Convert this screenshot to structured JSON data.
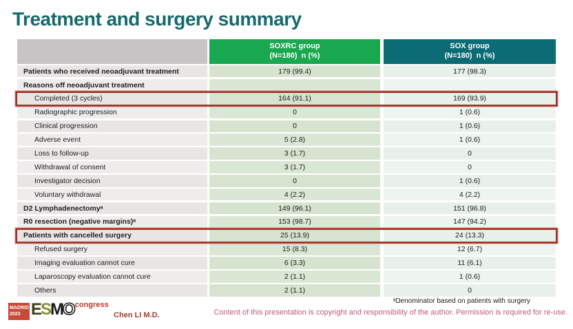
{
  "slide": {
    "title": "Treatment and surgery summary"
  },
  "colors": {
    "title_teal": "#17696d",
    "header_gray": "#c6c4c4",
    "header_soxrc_green": "#19a74f",
    "header_sox_teal": "#0b6c75",
    "highlight_box_red": "#9e2f27",
    "label_col_bg": "#e9e5e5",
    "soxrc_col_bg": "#d5e3cf",
    "sox_col_bg": "#e7f0e9",
    "copyright_rose": "#c25a72",
    "presenter_red": "#a33c33"
  },
  "table": {
    "columns": [
      {
        "line1": "",
        "line2": ""
      },
      {
        "line1": "SOXRC group",
        "line2": "(N=180)  n (%)"
      },
      {
        "line1": "SOX group",
        "line2": "(N=180)  n (%)"
      }
    ],
    "rows": [
      {
        "label": "Patients who received neoadjuvant treatment",
        "soxrc": "179 (99.4)",
        "sox": "177 (98.3)",
        "bold": true
      },
      {
        "label": "Reasons off neoadjuvant treatment",
        "soxrc": "",
        "sox": "",
        "bold": true
      },
      {
        "label": "Completed (3 cycles)",
        "soxrc": "164 (91.1)",
        "sox": "169 (93.9)",
        "indent": true,
        "highlight": true
      },
      {
        "label": "Radiographic progression",
        "soxrc": "0",
        "sox": "1 (0.6)",
        "indent": true
      },
      {
        "label": "Clinical progression",
        "soxrc": "0",
        "sox": "1 (0.6)",
        "indent": true
      },
      {
        "label": "Adverse event",
        "soxrc": "5 (2.8)",
        "sox": "1 (0.6)",
        "indent": true
      },
      {
        "label": "Loss to follow-up",
        "soxrc": "3 (1.7)",
        "sox": "0",
        "indent": true
      },
      {
        "label": "Withdrawal of consent",
        "soxrc": "3 (1.7)",
        "sox": "0",
        "indent": true
      },
      {
        "label": "Investigator decision",
        "soxrc": "0",
        "sox": "1 (0.6)",
        "indent": true
      },
      {
        "label": "Voluntary withdrawal",
        "soxrc": "4 (2.2)",
        "sox": "4 (2.2)",
        "indent": true
      },
      {
        "label": "D2 Lymphadenectomyᵃ",
        "soxrc": "149 (96.1)",
        "sox": "151 (96.8)",
        "bold": true
      },
      {
        "label": "R0 resection (negative margins)ᵃ",
        "soxrc": "153 (98.7)",
        "sox": "147 (94.2)",
        "bold": true
      },
      {
        "label": "Patients with cancelled surgery",
        "soxrc": "25 (13.9)",
        "sox": "24 (13.3)",
        "bold": true,
        "highlight": true
      },
      {
        "label": "Refused surgery",
        "soxrc": "15 (8.3)",
        "sox": "12 (6.7)",
        "indent": true
      },
      {
        "label": "Imaging evaluation cannot cure",
        "soxrc": "6 (3.3)",
        "sox": "11 (6.1)",
        "indent": true
      },
      {
        "label": "Laparoscopy evaluation cannot cure",
        "soxrc": "2 (1.1)",
        "sox": "1 (0.6)",
        "indent": true
      },
      {
        "label": "Others",
        "soxrc": "2 (1.1)",
        "sox": "0",
        "indent": true
      }
    ]
  },
  "footer": {
    "logo": {
      "city": "MADRID",
      "year": "2023",
      "org_letters": [
        "E",
        "S",
        "M",
        "O"
      ],
      "event": "congress"
    },
    "presenter": "Chen LI M.D.",
    "footnote": "ᵃDenominator based on patients with surgery",
    "copyright": "Content of this presentation is copyright and responsibility of the author. Permission is required for re-use."
  }
}
